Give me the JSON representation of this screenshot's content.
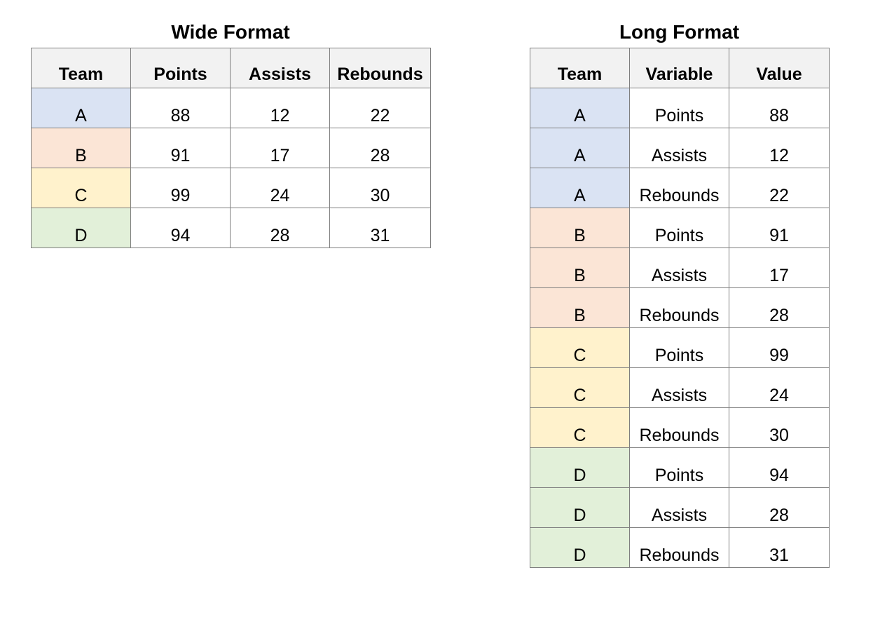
{
  "team_colors": {
    "A": "#dae3f3",
    "B": "#fbe5d6",
    "C": "#fff2cc",
    "D": "#e2f0d9"
  },
  "chart_data": [
    {
      "type": "table",
      "title": "Wide Format",
      "columns": [
        "Team",
        "Points",
        "Assists",
        "Rebounds"
      ],
      "rows": [
        [
          "A",
          "88",
          "12",
          "22"
        ],
        [
          "B",
          "91",
          "17",
          "28"
        ],
        [
          "C",
          "99",
          "24",
          "30"
        ],
        [
          "D",
          "94",
          "28",
          "31"
        ]
      ]
    },
    {
      "type": "table",
      "title": "Long Format",
      "columns": [
        "Team",
        "Variable",
        "Value"
      ],
      "rows": [
        [
          "A",
          "Points",
          "88"
        ],
        [
          "A",
          "Assists",
          "12"
        ],
        [
          "A",
          "Rebounds",
          "22"
        ],
        [
          "B",
          "Points",
          "91"
        ],
        [
          "B",
          "Assists",
          "17"
        ],
        [
          "B",
          "Rebounds",
          "28"
        ],
        [
          "C",
          "Points",
          "99"
        ],
        [
          "C",
          "Assists",
          "24"
        ],
        [
          "C",
          "Rebounds",
          "30"
        ],
        [
          "D",
          "Points",
          "94"
        ],
        [
          "D",
          "Assists",
          "28"
        ],
        [
          "D",
          "Rebounds",
          "31"
        ]
      ]
    }
  ]
}
